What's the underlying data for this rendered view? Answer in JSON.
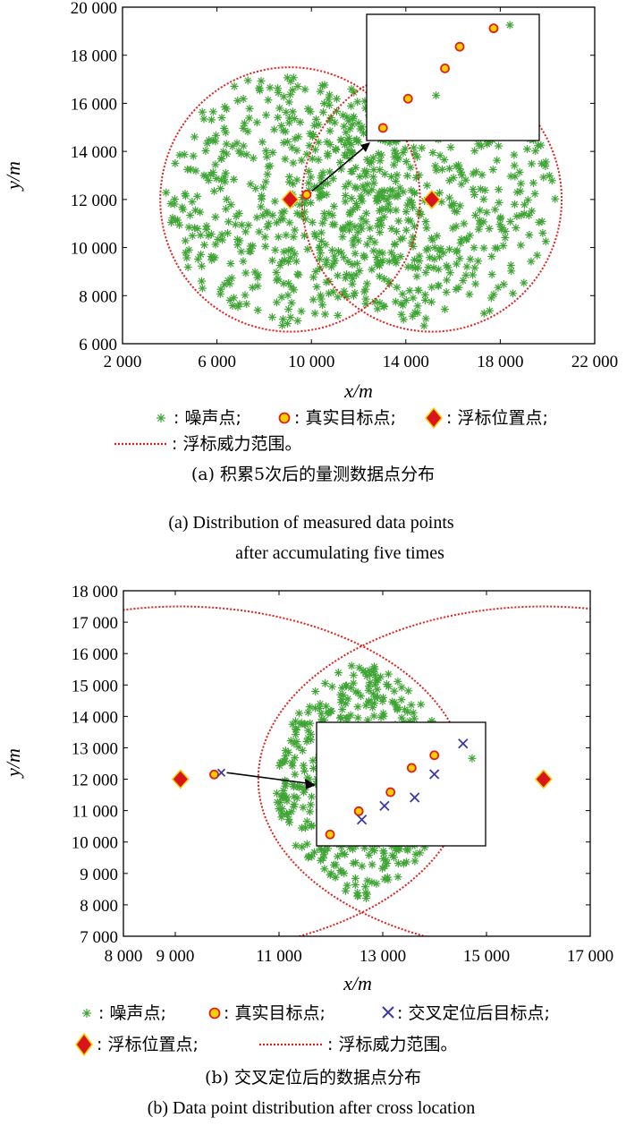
{
  "chart_data": [
    {
      "type": "scatter",
      "panel": "a",
      "xlabel": "x/m",
      "ylabel": "y/m",
      "xlim": [
        2000,
        22000
      ],
      "ylim": [
        6000,
        20000
      ],
      "x_ticks": [
        "2 000",
        "6 000",
        "10 000",
        "14 000",
        "18 000",
        "22 000"
      ],
      "y_ticks": [
        "6 000",
        "8 000",
        "10 000",
        "12 000",
        "14 000",
        "16 000",
        "18 000",
        "20 000"
      ],
      "buoys": [
        {
          "x": 9100,
          "y": 12000
        },
        {
          "x": 15100,
          "y": 12000
        }
      ],
      "ranges": [
        {
          "cx": 9100,
          "cy": 12000,
          "r": 5500
        },
        {
          "cx": 15100,
          "cy": 12000,
          "r": 5500
        }
      ],
      "true_target": {
        "x": 9800,
        "y": 12200
      },
      "noise_count": 900,
      "inset": {
        "true_targets": [
          [
            0.05,
            0.05
          ],
          [
            0.22,
            0.32
          ],
          [
            0.47,
            0.6
          ],
          [
            0.57,
            0.8
          ],
          [
            0.8,
            0.97
          ]
        ],
        "noise": [
          [
            0.41,
            0.35
          ],
          [
            0.91,
            1.0
          ]
        ]
      },
      "caption_cn": "(a) 积累5次后的量测数据点分布",
      "caption_en": [
        "(a) Distribution of measured data points",
        "after accumulating five times"
      ]
    },
    {
      "type": "scatter",
      "panel": "b",
      "xlabel": "x/m",
      "ylabel": "y/m",
      "xlim": [
        8000,
        17000
      ],
      "ylim": [
        7000,
        18000
      ],
      "x_ticks": [
        "8 000",
        "9 000",
        "11 000",
        "13 000",
        "15 000",
        "17 000"
      ],
      "x_tick_values": [
        8000,
        9000,
        11000,
        13000,
        15000,
        17000
      ],
      "y_ticks": [
        "7 000",
        "8 000",
        "9 000",
        "10 000",
        "11 000",
        "12 000",
        "13 000",
        "14 000",
        "15 000",
        "16 000",
        "17 000",
        "18 000"
      ],
      "buoys": [
        {
          "x": 9100,
          "y": 12000
        },
        {
          "x": 16100,
          "y": 12000
        }
      ],
      "ranges": [
        {
          "cx": 9100,
          "cy": 12000,
          "r": 5500
        },
        {
          "cx": 16100,
          "cy": 12000,
          "r": 5500
        }
      ],
      "true_target": {
        "x": 9750,
        "y": 12150
      },
      "noise_count": 560,
      "inset": {
        "true_targets": [
          [
            0.03,
            0.04
          ],
          [
            0.22,
            0.26
          ],
          [
            0.43,
            0.44
          ],
          [
            0.57,
            0.67
          ],
          [
            0.72,
            0.79
          ]
        ],
        "cross_targets": [
          [
            0.24,
            0.18
          ],
          [
            0.39,
            0.31
          ],
          [
            0.59,
            0.39
          ],
          [
            0.72,
            0.61
          ],
          [
            0.91,
            0.9
          ]
        ],
        "noise": [
          [
            0.97,
            0.76
          ]
        ]
      },
      "caption_cn": "(b) 交叉定位后的数据点分布",
      "caption_en": [
        "(b) Data point distribution after cross location"
      ]
    }
  ],
  "legend_a": {
    "noise": ": 噪声点;",
    "true": ": 真实目标点;",
    "buoy": ": 浮标位置点;",
    "range": ": 浮标威力范围。"
  },
  "legend_b": {
    "noise": ": 噪声点;",
    "true": ": 真实目标点;",
    "cross": ": 交叉定位后目标点;",
    "buoy": ": 浮标位置点;",
    "range": ": 浮标威力范围。"
  },
  "colors": {
    "noise": "#3fa535",
    "range": "#e0201b",
    "target_fill": "#f5d000",
    "target_edge": "#e0201b",
    "cross": "#3a3aa0",
    "buoy_fill": "#d9141a",
    "buoy_edge": "#f5d000"
  }
}
